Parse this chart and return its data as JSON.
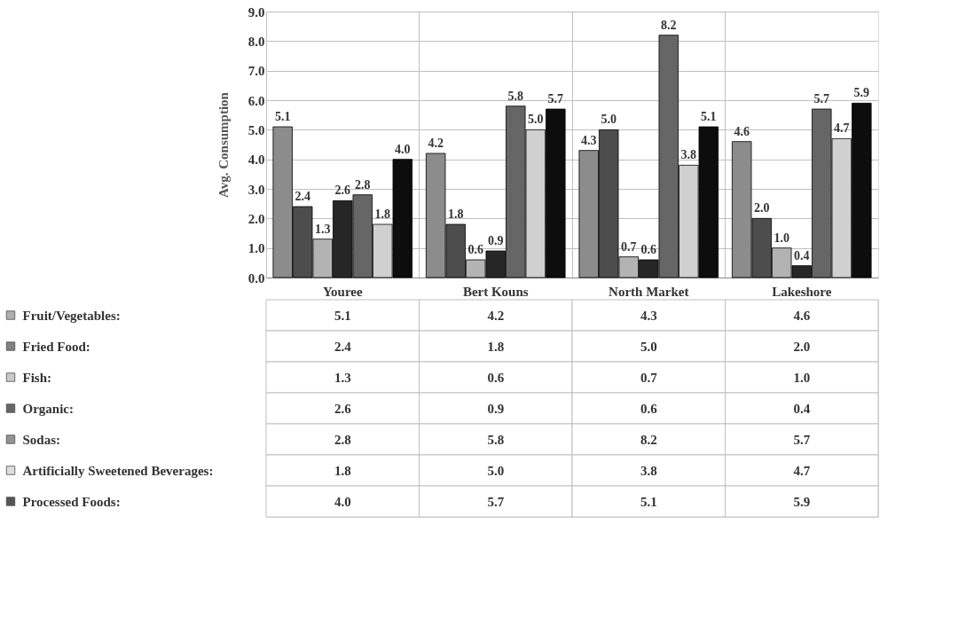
{
  "chart_data": {
    "type": "bar",
    "ylabel": "Avg. Consumption",
    "categories": [
      "Youree",
      "Bert Kouns",
      "North Market",
      "Lakeshore"
    ],
    "series": [
      {
        "name": "Fruit/Vegetables:",
        "color": "#8c8c8c",
        "values": [
          5.1,
          4.2,
          4.3,
          4.6
        ],
        "value_labels": [
          "5.1",
          "4.2",
          "4.3",
          "4.6"
        ]
      },
      {
        "name": "Fried Food:",
        "color": "#4d4d4d",
        "values": [
          2.4,
          1.8,
          5.0,
          2.0
        ],
        "value_labels": [
          "2.4",
          "1.8",
          "5.0",
          "2.0"
        ]
      },
      {
        "name": "Fish:",
        "color": "#b3b3b3",
        "values": [
          1.3,
          0.6,
          0.7,
          1.0
        ],
        "value_labels": [
          "1.3",
          "0.6",
          "0.7",
          "1.0"
        ]
      },
      {
        "name": "Organic:",
        "color": "#262626",
        "values": [
          2.6,
          0.9,
          0.6,
          0.4
        ],
        "value_labels": [
          "2.6",
          "0.9",
          "0.6",
          "0.4"
        ]
      },
      {
        "name": "Sodas:",
        "color": "#666666",
        "values": [
          2.8,
          5.8,
          8.2,
          5.7
        ],
        "value_labels": [
          "2.8",
          "5.8",
          "8.2",
          "5.7"
        ]
      },
      {
        "name": "Artificially Sweetened Beverages:",
        "color": "#d0d0d0",
        "values": [
          1.8,
          5.0,
          3.8,
          4.7
        ],
        "value_labels": [
          "1.8",
          "5.0",
          "3.8",
          "4.7"
        ]
      },
      {
        "name": "Processed Foods:",
        "color": "#0d0d0d",
        "values": [
          4.0,
          5.7,
          5.1,
          5.9
        ],
        "value_labels": [
          "4.0",
          "5.7",
          "5.1",
          "5.9"
        ]
      }
    ],
    "ylim": [
      0,
      9
    ],
    "yticks": [
      {
        "value": 0,
        "label": "0.0"
      },
      {
        "value": 1,
        "label": "1.0"
      },
      {
        "value": 2,
        "label": "2.0"
      },
      {
        "value": 3,
        "label": "3.0"
      },
      {
        "value": 4,
        "label": "4.0"
      },
      {
        "value": 5,
        "label": "5.0"
      },
      {
        "value": 6,
        "label": "6.0"
      },
      {
        "value": 7,
        "label": "7.0"
      },
      {
        "value": 8,
        "label": "8.0"
      },
      {
        "value": 9,
        "label": "9.0"
      }
    ],
    "grid": true,
    "legend": "bottom left"
  }
}
